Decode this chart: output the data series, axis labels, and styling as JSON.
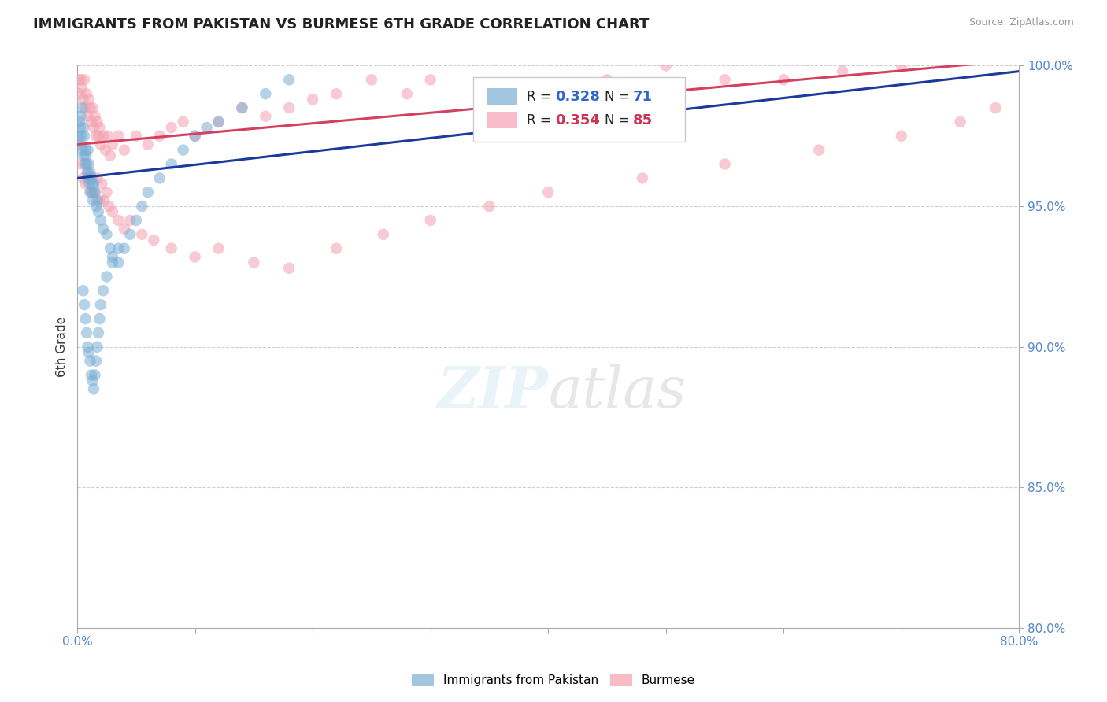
{
  "title": "IMMIGRANTS FROM PAKISTAN VS BURMESE 6TH GRADE CORRELATION CHART",
  "source_text": "Source: ZipAtlas.com",
  "ylabel": "6th Grade",
  "xlim": [
    0.0,
    80.0
  ],
  "ylim": [
    80.0,
    100.0
  ],
  "xticks": [
    0.0,
    10.0,
    20.0,
    30.0,
    40.0,
    50.0,
    60.0,
    70.0,
    80.0
  ],
  "yticks": [
    80.0,
    85.0,
    90.0,
    95.0,
    100.0
  ],
  "xtick_labels": [
    "0.0%",
    "",
    "",
    "",
    "",
    "",
    "",
    "",
    "80.0%"
  ],
  "ytick_labels": [
    "80.0%",
    "85.0%",
    "90.0%",
    "95.0%",
    "100.0%"
  ],
  "blue_color": "#7BADD4",
  "pink_color": "#F4A0B0",
  "blue_line_color": "#1A3A9C",
  "pink_line_color": "#D44060",
  "legend_R_blue": "0.328",
  "legend_N_blue": "71",
  "legend_R_pink": "0.354",
  "legend_N_pink": "85",
  "grid_color": "#BBBBBB",
  "blue_x": [
    0.1,
    0.15,
    0.2,
    0.25,
    0.3,
    0.35,
    0.4,
    0.45,
    0.5,
    0.55,
    0.6,
    0.65,
    0.7,
    0.75,
    0.8,
    0.85,
    0.9,
    0.95,
    1.0,
    1.05,
    1.1,
    1.15,
    1.2,
    1.25,
    1.3,
    1.35,
    1.4,
    1.5,
    1.6,
    1.7,
    1.8,
    2.0,
    2.2,
    2.5,
    2.8,
    3.0,
    3.5,
    4.0,
    4.5,
    5.0,
    5.5,
    6.0,
    7.0,
    8.0,
    9.0,
    10.0,
    11.0,
    12.0,
    14.0,
    16.0,
    18.0,
    0.5,
    0.6,
    0.7,
    0.8,
    0.9,
    1.0,
    1.1,
    1.2,
    1.3,
    1.4,
    1.5,
    1.6,
    1.7,
    1.8,
    1.9,
    2.0,
    2.2,
    2.5,
    3.0,
    3.5
  ],
  "blue_y": [
    97.2,
    97.5,
    98.0,
    97.8,
    98.2,
    97.5,
    98.5,
    97.0,
    97.8,
    96.8,
    97.5,
    96.5,
    97.0,
    96.8,
    96.5,
    96.2,
    97.0,
    96.0,
    96.5,
    95.8,
    96.2,
    95.5,
    96.0,
    95.8,
    95.5,
    95.2,
    95.8,
    95.5,
    95.0,
    95.2,
    94.8,
    94.5,
    94.2,
    94.0,
    93.5,
    93.2,
    93.0,
    93.5,
    94.0,
    94.5,
    95.0,
    95.5,
    96.0,
    96.5,
    97.0,
    97.5,
    97.8,
    98.0,
    98.5,
    99.0,
    99.5,
    92.0,
    91.5,
    91.0,
    90.5,
    90.0,
    89.8,
    89.5,
    89.0,
    88.8,
    88.5,
    89.0,
    89.5,
    90.0,
    90.5,
    91.0,
    91.5,
    92.0,
    92.5,
    93.0,
    93.5
  ],
  "pink_x": [
    0.1,
    0.2,
    0.3,
    0.4,
    0.5,
    0.6,
    0.7,
    0.8,
    0.9,
    1.0,
    1.1,
    1.2,
    1.3,
    1.4,
    1.5,
    1.6,
    1.7,
    1.8,
    1.9,
    2.0,
    2.2,
    2.4,
    2.6,
    2.8,
    3.0,
    3.5,
    4.0,
    5.0,
    6.0,
    7.0,
    8.0,
    9.0,
    10.0,
    12.0,
    14.0,
    16.0,
    18.0,
    20.0,
    22.0,
    25.0,
    28.0,
    30.0,
    35.0,
    40.0,
    45.0,
    50.0,
    55.0,
    60.0,
    65.0,
    70.0,
    0.3,
    0.5,
    0.7,
    0.9,
    1.1,
    1.3,
    1.5,
    1.7,
    1.9,
    2.1,
    2.3,
    2.5,
    2.7,
    3.0,
    3.5,
    4.0,
    4.5,
    5.5,
    6.5,
    8.0,
    10.0,
    12.0,
    15.0,
    18.0,
    22.0,
    26.0,
    30.0,
    35.0,
    40.0,
    48.0,
    55.0,
    63.0,
    70.0,
    75.0,
    78.0
  ],
  "pink_y": [
    99.5,
    99.0,
    99.5,
    99.2,
    98.8,
    99.5,
    98.5,
    99.0,
    98.2,
    98.8,
    98.5,
    98.0,
    98.5,
    97.8,
    98.2,
    97.5,
    98.0,
    97.5,
    97.8,
    97.2,
    97.5,
    97.0,
    97.5,
    96.8,
    97.2,
    97.5,
    97.0,
    97.5,
    97.2,
    97.5,
    97.8,
    98.0,
    97.5,
    98.0,
    98.5,
    98.2,
    98.5,
    98.8,
    99.0,
    99.5,
    99.0,
    99.5,
    99.0,
    99.2,
    99.5,
    100.0,
    99.5,
    99.5,
    99.8,
    100.0,
    96.5,
    96.0,
    95.8,
    96.2,
    95.5,
    96.0,
    95.5,
    96.0,
    95.2,
    95.8,
    95.2,
    95.5,
    95.0,
    94.8,
    94.5,
    94.2,
    94.5,
    94.0,
    93.8,
    93.5,
    93.2,
    93.5,
    93.0,
    92.8,
    93.5,
    94.0,
    94.5,
    95.0,
    95.5,
    96.0,
    96.5,
    97.0,
    97.5,
    98.0,
    98.5
  ]
}
